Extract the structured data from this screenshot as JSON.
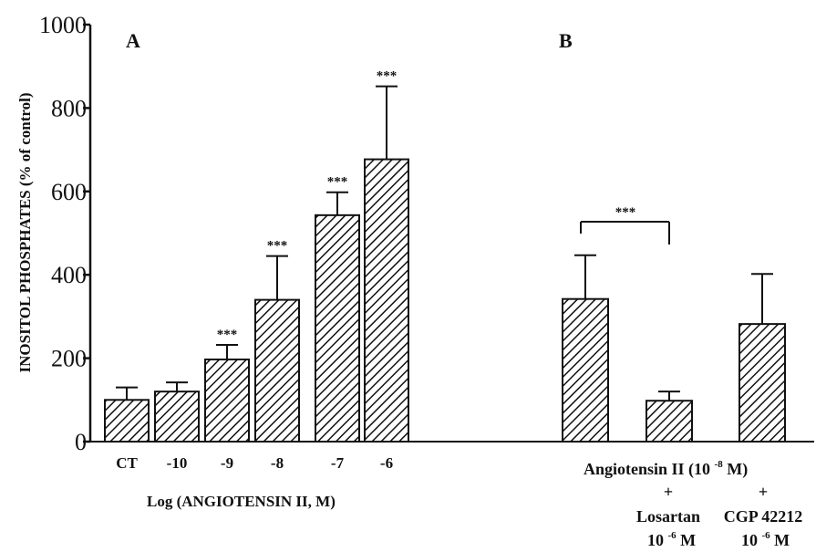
{
  "chart_data": {
    "type": "bar",
    "ylabel": "INOSITOL PHOSPHATES (% of control)",
    "ylim": [
      0,
      1000
    ],
    "yticks": [
      "0",
      "200",
      "400",
      "600",
      "800",
      "1000"
    ],
    "grid": false,
    "panels": {
      "A": {
        "label": "A",
        "xlabel": "Log (ANGIOTENSIN II, M)",
        "categories": [
          "CT",
          "-10",
          "-9",
          "-8",
          "-7",
          "-6"
        ],
        "values": [
          100,
          120,
          197,
          340,
          543,
          677
        ],
        "errors": [
          30,
          22,
          35,
          105,
          55,
          175
        ],
        "significance": [
          "",
          "",
          "***",
          "***",
          "***",
          "***"
        ]
      },
      "B": {
        "label": "B",
        "values": [
          342,
          98,
          282
        ],
        "errors": [
          105,
          22,
          120
        ],
        "significance_bracket": "***",
        "group_label": {
          "main": "Angiotensin II (10",
          "exp": "-8",
          "end": "M)"
        },
        "sub_labels": [
          {
            "plus": "+",
            "name": "Losartan",
            "conc_base": "10",
            "conc_exp": "-6",
            "conc_unit": "M"
          },
          {
            "plus": "+",
            "name": "CGP 42212",
            "conc_base": "10",
            "conc_exp": "-6",
            "conc_unit": "M"
          }
        ]
      }
    }
  }
}
